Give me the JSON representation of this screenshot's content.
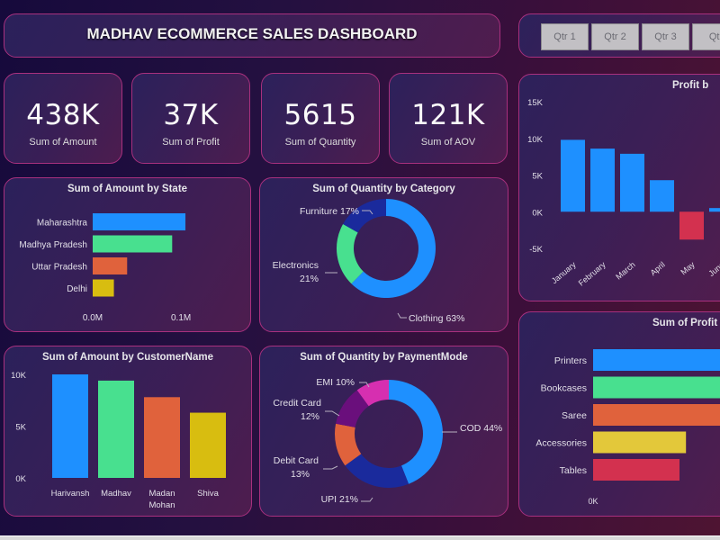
{
  "header": {
    "title": "MADHAV ECOMMERCE SALES DASHBOARD"
  },
  "slicer": {
    "quarters": [
      "Qtr 1",
      "Qtr 2",
      "Qtr 3",
      "Qtr"
    ]
  },
  "kpis": [
    {
      "value": "438K",
      "label": "Sum of Amount"
    },
    {
      "value": "37K",
      "label": "Sum of Profit"
    },
    {
      "value": "5615",
      "label": "Sum of Quantity"
    },
    {
      "value": "121K",
      "label": "Sum of AOV"
    }
  ],
  "colors": {
    "blue": "#1e90ff",
    "green": "#48e08f",
    "orange": "#e0623c",
    "yellow": "#d8bd10",
    "navy": "#1a2a9c",
    "purple": "#6a0f7c",
    "magenta": "#d62fb0",
    "red": "#d3314f",
    "yellow2": "#e3c83a"
  },
  "chart_data": [
    {
      "id": "state",
      "type": "bar",
      "orientation": "horizontal",
      "title": "Sum of Amount by State",
      "categories": [
        "Maharashtra",
        "Madhya Pradesh",
        "Uttar Pradesh",
        "Delhi"
      ],
      "values": [
        0.105,
        0.09,
        0.039,
        0.024
      ],
      "colors": [
        "#1e90ff",
        "#48e08f",
        "#e0623c",
        "#d8bd10"
      ],
      "unit": "M",
      "xticks": [
        "0.0M",
        "0.1M"
      ],
      "xtick_values": [
        0,
        0.1
      ],
      "xlim": [
        0,
        0.16
      ]
    },
    {
      "id": "category",
      "type": "pie",
      "donut": true,
      "title": "Sum of Quantity by Category",
      "labels": [
        "Clothing",
        "Electronics",
        "Furniture"
      ],
      "values": [
        63,
        21,
        17
      ],
      "label_text": [
        "Clothing 63%",
        "Electronics",
        "Furniture 17%"
      ],
      "label_sub": [
        "",
        "21%",
        ""
      ],
      "colors": [
        "#1e90ff",
        "#48e08f",
        "#1a2a9c"
      ]
    },
    {
      "id": "customer",
      "type": "bar",
      "orientation": "vertical",
      "title": "Sum of Amount by CustomerName",
      "categories": [
        "Harivansh",
        "Madhav",
        "Madan Mohan",
        "Shiva"
      ],
      "category_lines": [
        [
          "Harivansh"
        ],
        [
          "Madhav"
        ],
        [
          "Madan",
          "Mohan"
        ],
        [
          "Shiva"
        ]
      ],
      "values": [
        10000,
        9400,
        7800,
        6300
      ],
      "colors": [
        "#1e90ff",
        "#48e08f",
        "#e0623c",
        "#d8bd10"
      ],
      "yticks": [
        "0K",
        "5K",
        "10K"
      ],
      "ytick_values": [
        0,
        5000,
        10000
      ],
      "ylim": [
        0,
        10000
      ]
    },
    {
      "id": "payment",
      "type": "pie",
      "donut": true,
      "title": "Sum of Quantity by PaymentMode",
      "labels": [
        "COD",
        "UPI",
        "Debit Card",
        "Credit Card",
        "EMI"
      ],
      "values": [
        44,
        21,
        13,
        12,
        10
      ],
      "label_text": [
        "COD 44%",
        "UPI 21%",
        "Debit Card",
        "Credit Card",
        "EMI 10%"
      ],
      "label_sub": [
        "",
        "",
        "13%",
        "12%",
        ""
      ],
      "colors": [
        "#1e90ff",
        "#1a2a9c",
        "#e0623c",
        "#6a0f7c",
        "#d62fb0"
      ]
    },
    {
      "id": "month",
      "type": "bar",
      "orientation": "vertical",
      "title": "Profit b",
      "categories": [
        "January",
        "February",
        "March",
        "April",
        "May",
        "June"
      ],
      "values": [
        9800,
        8600,
        7900,
        4300,
        -3800,
        500
      ],
      "positive_color": "#1e90ff",
      "negative_color": "#d3314f",
      "yticks": [
        "-5K",
        "0K",
        "5K",
        "10K",
        "15K"
      ],
      "ytick_values": [
        -5000,
        0,
        5000,
        10000,
        15000
      ],
      "ylim": [
        -5000,
        15000
      ]
    },
    {
      "id": "subcategory",
      "type": "bar",
      "orientation": "horizontal",
      "title": "Sum of Profit b",
      "categories": [
        "Printers",
        "Bookcases",
        "Saree",
        "Accessories",
        "Tables"
      ],
      "values": [
        7400,
        7300,
        7300,
        4300,
        4000
      ],
      "colors": [
        "#1e90ff",
        "#48e08f",
        "#e0623c",
        "#e3c83a",
        "#d3314f"
      ],
      "xticks": [
        "0K"
      ],
      "xtick_values": [
        0
      ],
      "xlim": [
        0,
        5000
      ]
    }
  ]
}
